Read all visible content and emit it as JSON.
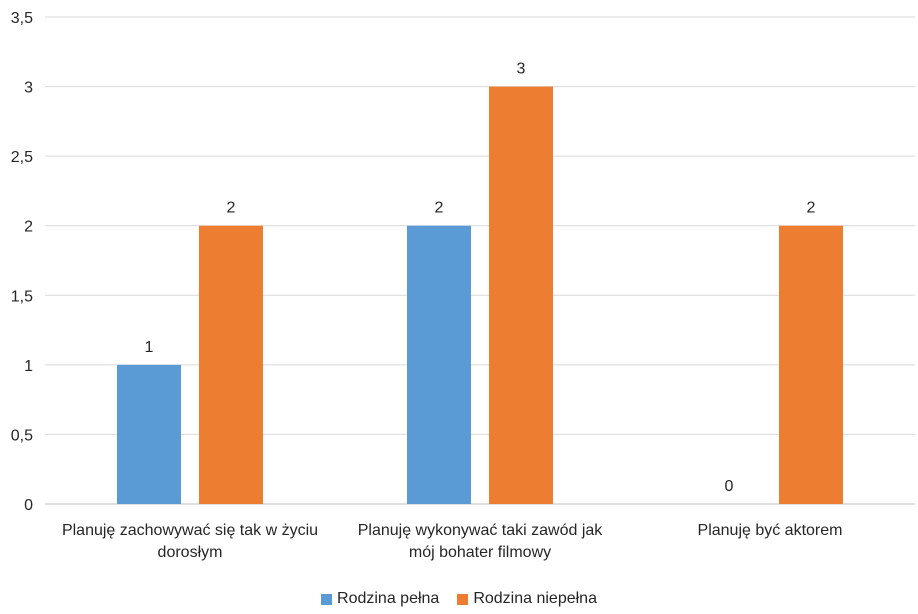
{
  "chart_data": {
    "type": "bar",
    "categories": [
      [
        "Planuję zachowywać się tak w życiu",
        "dorosłym"
      ],
      [
        "Planuję wykonywać taki zawód jak",
        "mój bohater filmowy"
      ],
      [
        "Planuję być aktorem"
      ]
    ],
    "series": [
      {
        "name": "Rodzina pełna",
        "color": "#5B9BD5",
        "values": [
          1,
          2,
          0
        ]
      },
      {
        "name": "Rodzina niepełna",
        "color": "#ED7D31",
        "values": [
          2,
          3,
          2
        ]
      }
    ],
    "ylim": [
      0,
      3.5
    ],
    "yticks": [
      "0",
      "0,5",
      "1",
      "1,5",
      "2",
      "2,5",
      "3",
      "3,5"
    ],
    "grid": true,
    "legend_position": "bottom"
  }
}
